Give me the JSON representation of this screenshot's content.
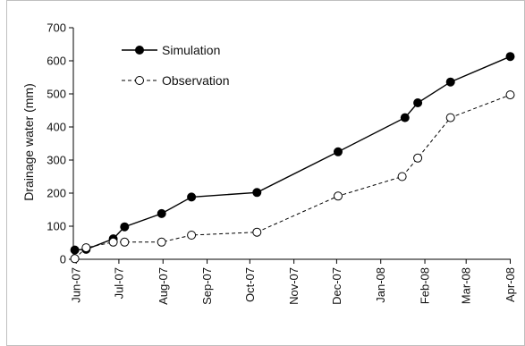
{
  "chart_data": {
    "type": "line",
    "title": "",
    "xlabel": "",
    "ylabel": "Drainage water (mm)",
    "ylim": [
      0,
      700
    ],
    "yticks": [
      0,
      100,
      200,
      300,
      400,
      500,
      600,
      700
    ],
    "grid": false,
    "legend": "top-left",
    "x_ticks": [
      {
        "date": "2007-06-01",
        "label": "Jun-07"
      },
      {
        "date": "2007-07-01",
        "label": "Jul-07"
      },
      {
        "date": "2007-08-01",
        "label": "Aug-07"
      },
      {
        "date": "2007-09-01",
        "label": "Sep-07"
      },
      {
        "date": "2007-10-01",
        "label": "Oct-07"
      },
      {
        "date": "2007-11-01",
        "label": "Nov-07"
      },
      {
        "date": "2007-12-01",
        "label": "Dec-07"
      },
      {
        "date": "2008-01-01",
        "label": "Jan-08"
      },
      {
        "date": "2008-02-01",
        "label": "Feb-08"
      },
      {
        "date": "2008-03-01",
        "label": "Mar-08"
      },
      {
        "date": "2008-04-01",
        "label": "Apr-08"
      }
    ],
    "series": [
      {
        "name": "Simulation",
        "style": "solid",
        "marker": "filled-circle",
        "color": "#000000",
        "points": [
          {
            "x": "2007-05-31",
            "y": 28
          },
          {
            "x": "2007-06-08",
            "y": 30
          },
          {
            "x": "2007-06-27",
            "y": 62
          },
          {
            "x": "2007-07-05",
            "y": 98
          },
          {
            "x": "2007-07-31",
            "y": 138
          },
          {
            "x": "2007-08-21",
            "y": 188
          },
          {
            "x": "2007-10-06",
            "y": 202
          },
          {
            "x": "2007-12-02",
            "y": 325
          },
          {
            "x": "2008-01-18",
            "y": 428
          },
          {
            "x": "2008-01-27",
            "y": 473
          },
          {
            "x": "2008-02-19",
            "y": 536
          },
          {
            "x": "2008-04-01",
            "y": 613
          }
        ]
      },
      {
        "name": "Observation",
        "style": "dashed",
        "marker": "open-circle",
        "color": "#000000",
        "points": [
          {
            "x": "2007-05-31",
            "y": 2
          },
          {
            "x": "2007-06-08",
            "y": 35
          },
          {
            "x": "2007-06-27",
            "y": 52
          },
          {
            "x": "2007-07-05",
            "y": 52
          },
          {
            "x": "2007-07-31",
            "y": 52
          },
          {
            "x": "2007-08-21",
            "y": 73
          },
          {
            "x": "2007-10-06",
            "y": 82
          },
          {
            "x": "2007-12-02",
            "y": 191
          },
          {
            "x": "2008-01-16",
            "y": 250
          },
          {
            "x": "2008-01-27",
            "y": 306
          },
          {
            "x": "2008-02-19",
            "y": 428
          },
          {
            "x": "2008-04-01",
            "y": 497
          }
        ]
      }
    ]
  }
}
